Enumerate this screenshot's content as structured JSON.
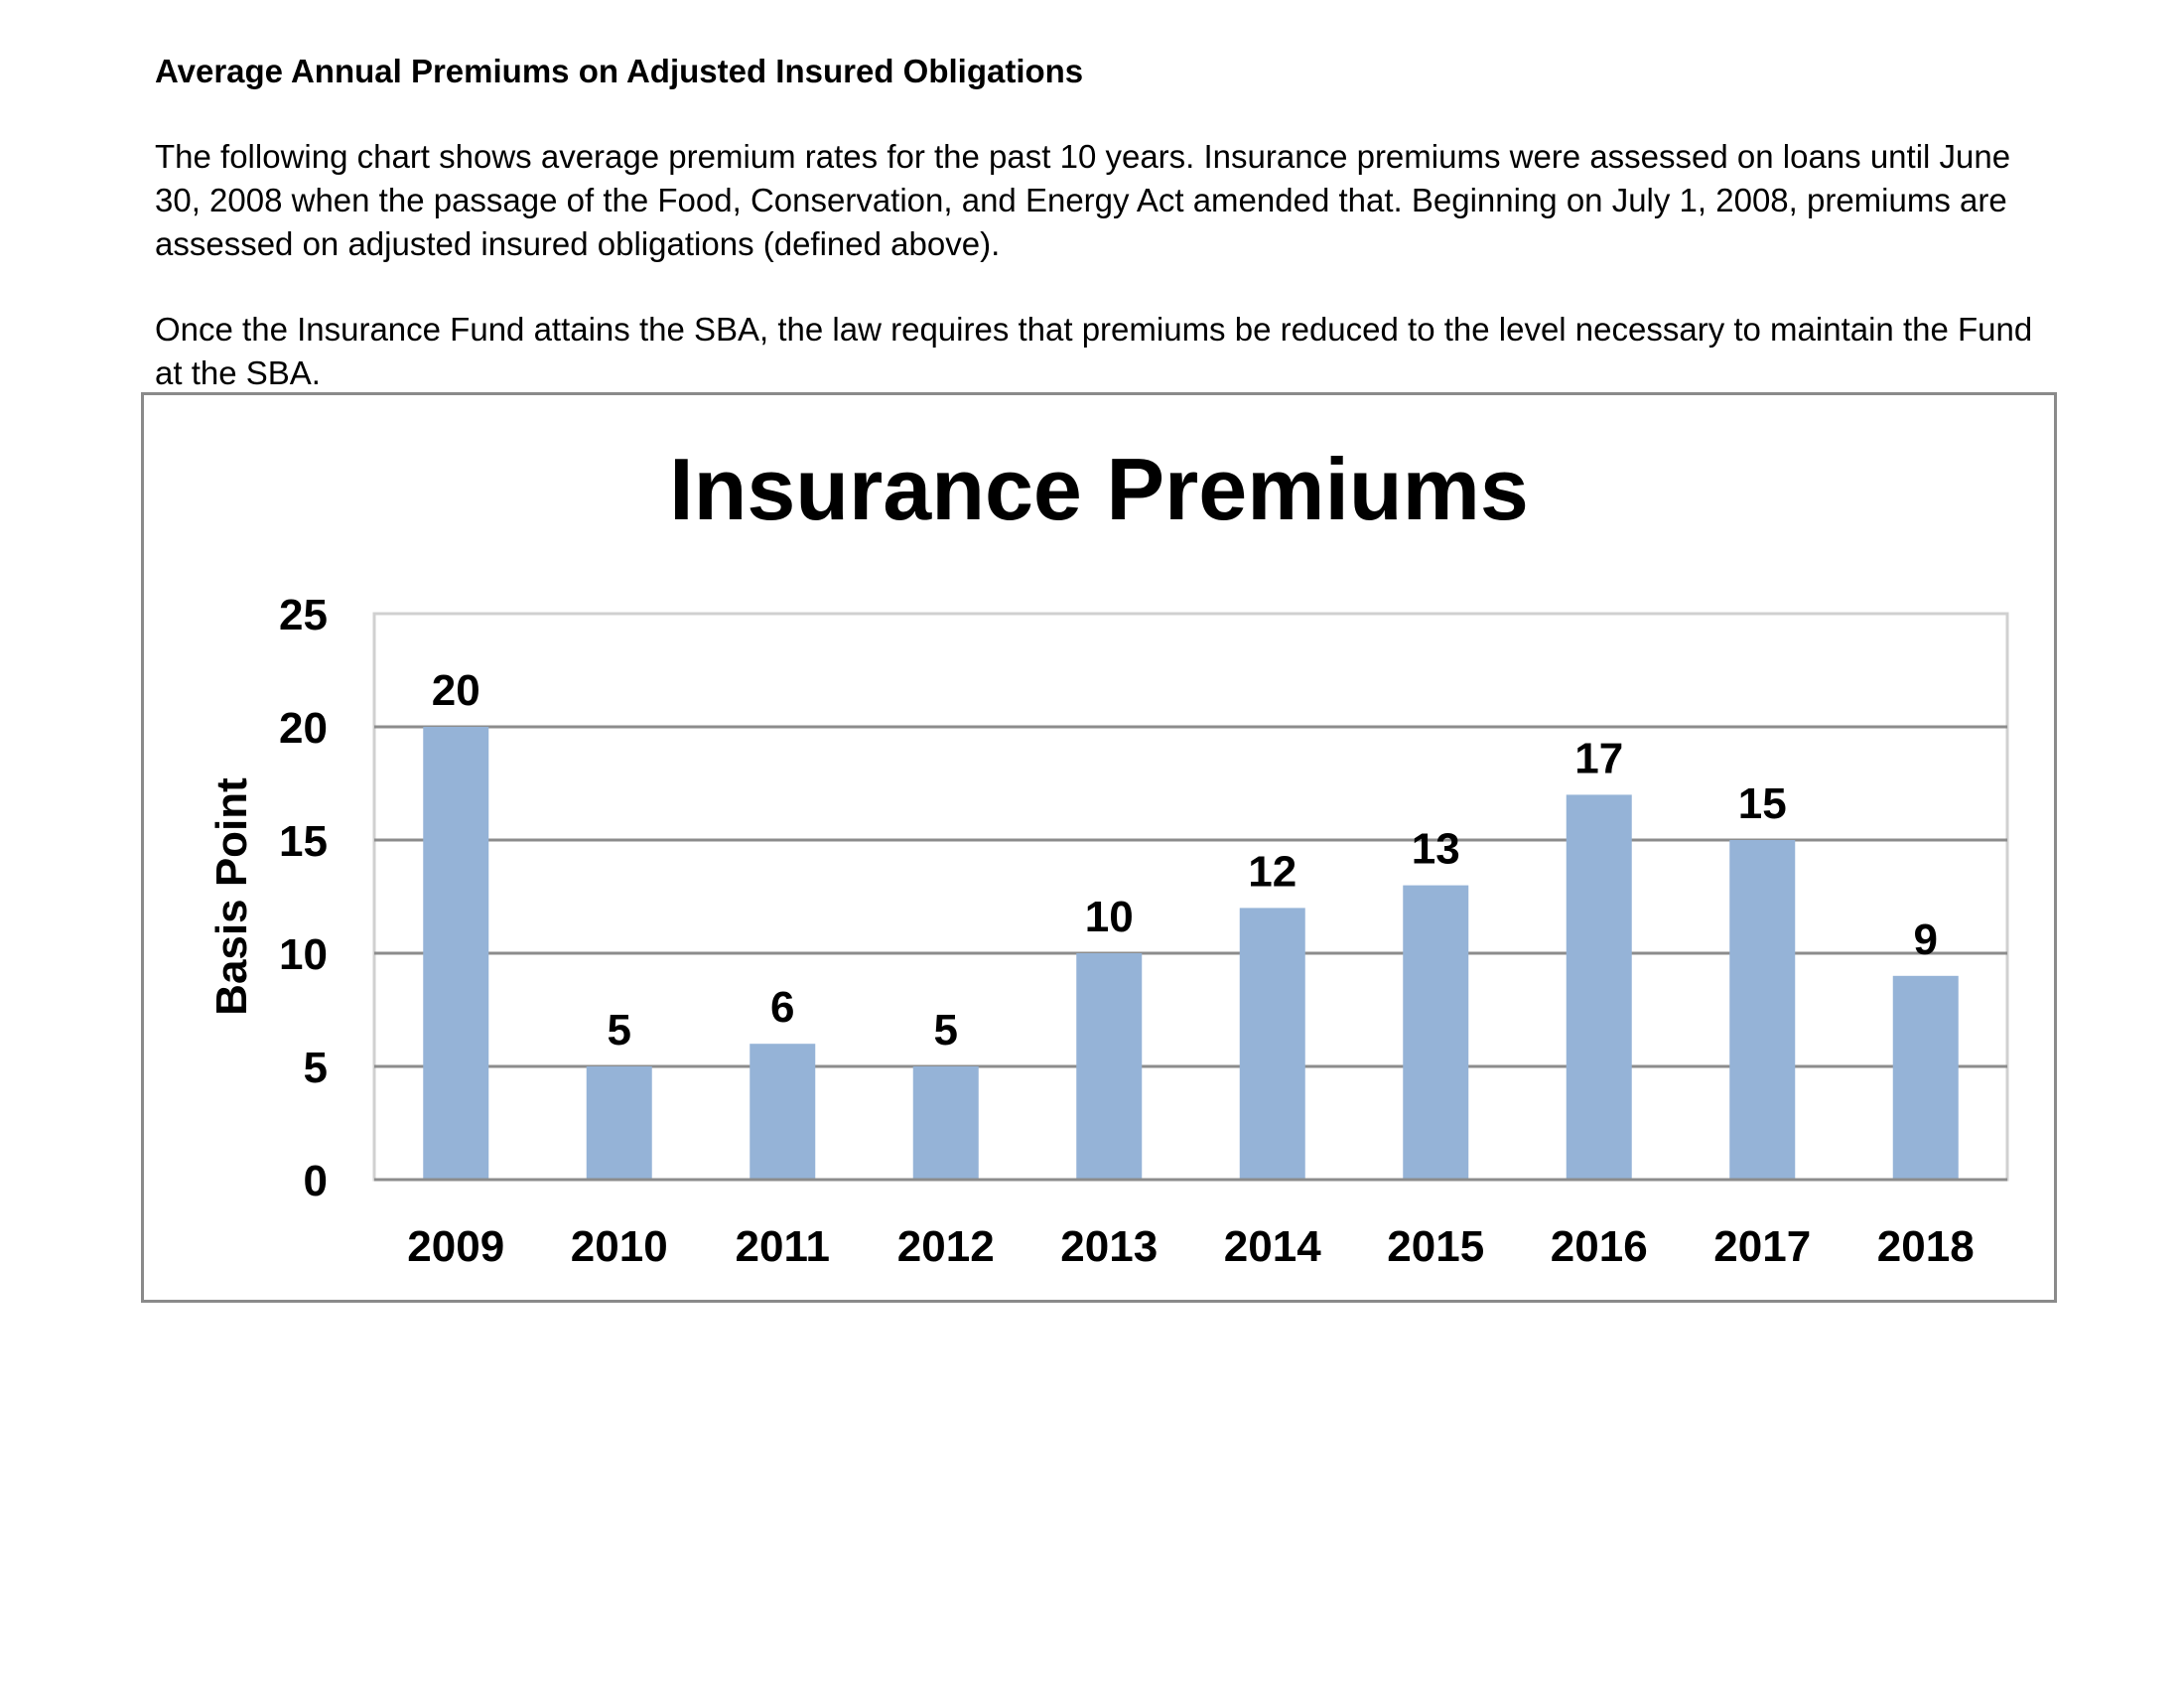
{
  "document": {
    "heading": "Average Annual Premiums on Adjusted Insured Obligations",
    "paragraph1": "The following chart shows average premium rates for the past 10 years. Insurance premiums were assessed on loans until June 30, 2008 when the passage of the Food, Conservation, and Energy Act amended that. Beginning on July 1, 2008, premiums are assessed on adjusted insured obligations (defined above).",
    "paragraph2": "Once the Insurance Fund attains the SBA, the law requires that premiums be reduced to the level necessary to maintain the Fund at the SBA."
  },
  "chart_data": {
    "type": "bar",
    "title": "Insurance Premiums",
    "xlabel": "",
    "ylabel": "Basis Point",
    "categories": [
      "2009",
      "2010",
      "2011",
      "2012",
      "2013",
      "2014",
      "2015",
      "2016",
      "2017",
      "2018"
    ],
    "values": [
      20,
      5,
      6,
      5,
      10,
      12,
      13,
      17,
      15,
      9
    ],
    "data_labels": [
      "20",
      "5",
      "6",
      "5",
      "10",
      "12",
      "13",
      "17",
      "15",
      "9"
    ],
    "ylim": [
      0,
      25
    ],
    "yticks": [
      0,
      5,
      10,
      15,
      20,
      25
    ],
    "ytick_labels": [
      "0",
      "5",
      "10",
      "15",
      "20",
      "25"
    ],
    "grid": true,
    "legend": "none",
    "colors": {
      "bar": "#95b3d7",
      "grid": "#8c8c8c",
      "frame": "#8a8a8a"
    }
  }
}
